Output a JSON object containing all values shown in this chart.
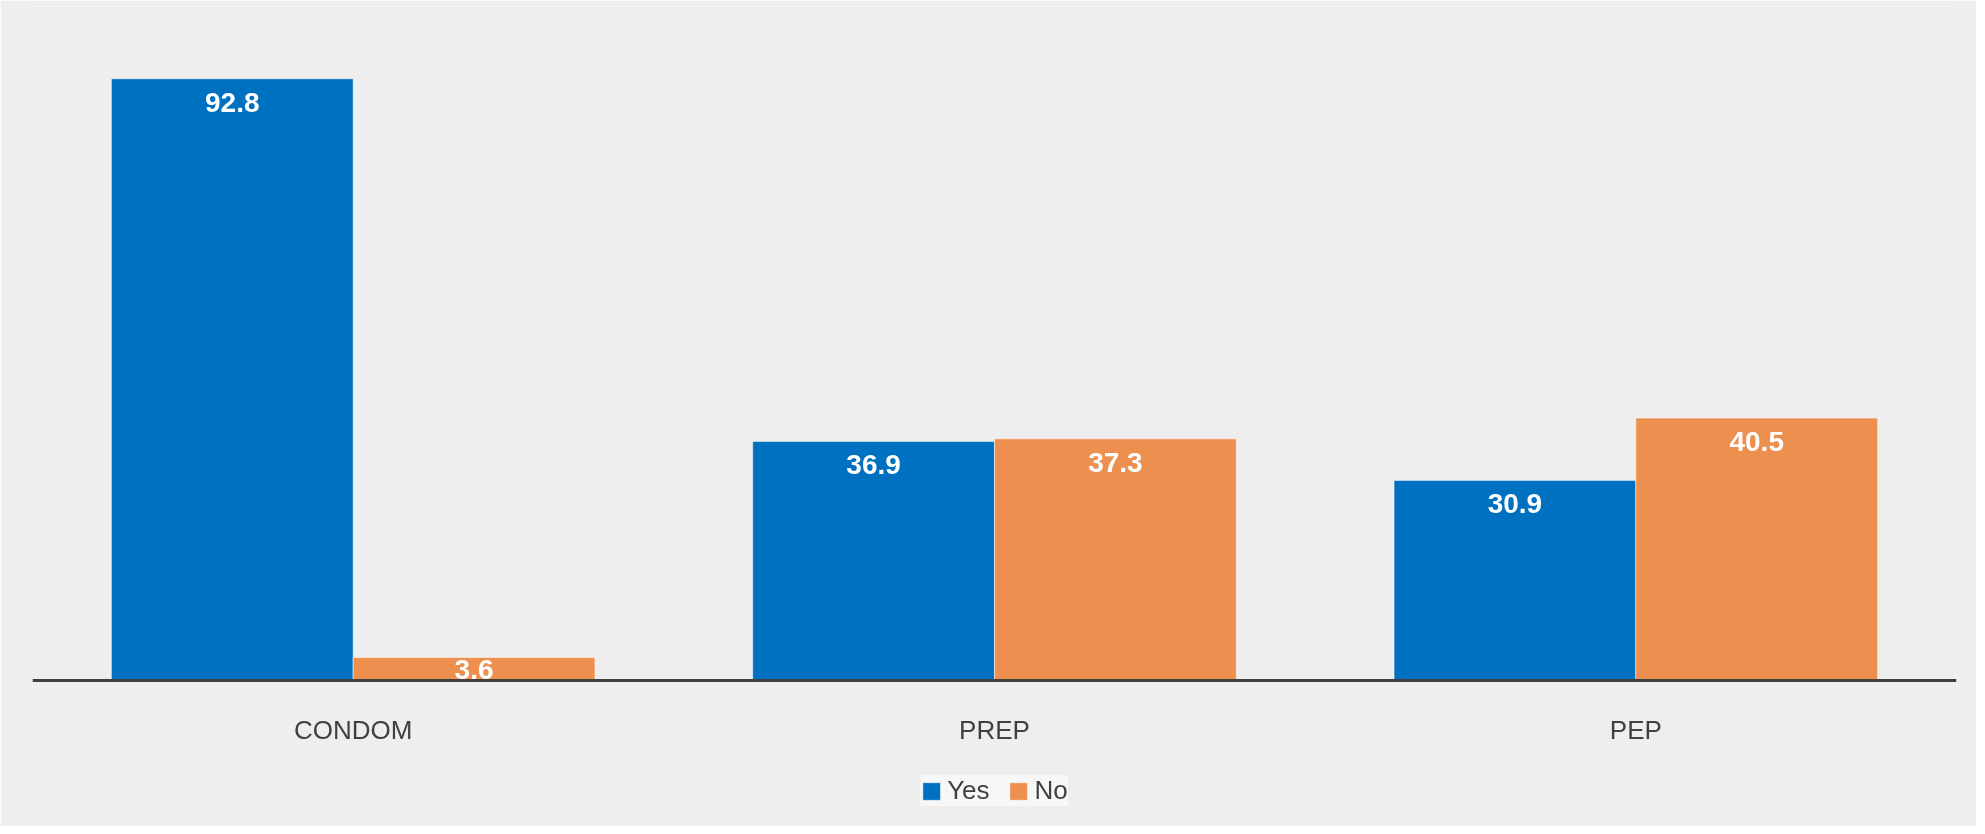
{
  "chart_data": {
    "type": "bar",
    "categories": [
      "CONDOM",
      "PREP",
      "PEP"
    ],
    "series": [
      {
        "name": "Yes",
        "color": "#0070c0",
        "values": [
          92.8,
          36.9,
          30.9
        ]
      },
      {
        "name": "No",
        "color": "#ed8f4f",
        "values": [
          3.6,
          37.3,
          40.5
        ]
      }
    ],
    "data_labels": true,
    "legend": "bottom",
    "grid": false
  }
}
